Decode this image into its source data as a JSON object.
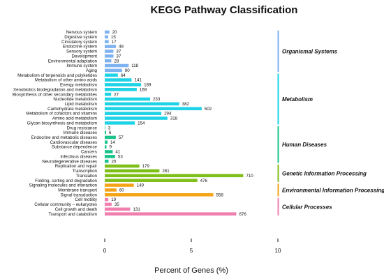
{
  "chart_data": {
    "type": "bar",
    "orientation": "horizontal",
    "title": "KEGG Pathway Classification",
    "xlabel": "Percent of Genes (%)",
    "xlim": [
      0,
      10
    ],
    "xticks": [
      "0",
      "5",
      "10"
    ],
    "groups": [
      {
        "name": "Organismal Systems",
        "color": "#7fb2f0",
        "items": [
          {
            "label": "Nervous system",
            "count": 20,
            "percent": 0.27
          },
          {
            "label": "Digestive system",
            "count": 15,
            "percent": 0.2
          },
          {
            "label": "Circulatory system",
            "count": 17,
            "percent": 0.23
          },
          {
            "label": "Endocrine system",
            "count": 48,
            "percent": 0.65
          },
          {
            "label": "Sensory system",
            "count": 37,
            "percent": 0.5
          },
          {
            "label": "Development",
            "count": 37,
            "percent": 0.5
          },
          {
            "label": "Environmental adaptation",
            "count": 28,
            "percent": 0.38
          },
          {
            "label": "Immune system",
            "count": 118,
            "percent": 1.38
          },
          {
            "label": "Aging",
            "count": 90,
            "percent": 1.0
          }
        ]
      },
      {
        "name": "Metabolism",
        "color": "#1ed3e6",
        "items": [
          {
            "label": "Metabolism of terpenoids and polyketides",
            "count": 64,
            "percent": 0.76
          },
          {
            "label": "Metabolism of other amino acids",
            "count": 141,
            "percent": 1.55
          },
          {
            "label": "Energy metabolism",
            "count": 189,
            "percent": 2.1
          },
          {
            "label": "Xenobiotics biodegradation and metabolism",
            "count": 169,
            "percent": 1.85
          },
          {
            "label": "Biosynthesis of other secondary metabolites",
            "count": 27,
            "percent": 0.37
          },
          {
            "label": "Nucleotide metabolism",
            "count": 233,
            "percent": 2.62
          },
          {
            "label": "Lipid metabolism",
            "count": 382,
            "percent": 4.3
          },
          {
            "label": "Carbohydrate metabolism",
            "count": 502,
            "percent": 5.6
          },
          {
            "label": "Metabolism of cofactors and vitamins",
            "count": 294,
            "percent": 3.27
          },
          {
            "label": "Amino acid metabolism",
            "count": 318,
            "percent": 3.62
          },
          {
            "label": "Glycan biosynthesis and metabolism",
            "count": 154,
            "percent": 1.74
          }
        ]
      },
      {
        "name": "Human Diseases",
        "color": "#19c389",
        "items": [
          {
            "label": "Drug resistance",
            "count": 3,
            "percent": 0.03
          },
          {
            "label": "Immune diseases",
            "count": 6,
            "percent": 0.08
          },
          {
            "label": "Endocrine and metabolic diseases",
            "count": 57,
            "percent": 0.64
          },
          {
            "label": "Cardiovascular diseases",
            "count": 14,
            "percent": 0.16
          },
          {
            "label": "Substance dependence",
            "count": 9,
            "percent": 0.1
          },
          {
            "label": "Cancers",
            "count": 41,
            "percent": 0.46
          },
          {
            "label": "Infectious diseases",
            "count": 53,
            "percent": 0.6
          },
          {
            "label": "Neurodegenerative diseases",
            "count": 20,
            "percent": 0.22
          }
        ]
      },
      {
        "name": "Genetic Information Processing",
        "color": "#7fbf1a",
        "items": [
          {
            "label": "Replication and repair",
            "count": 179,
            "percent": 2.0
          },
          {
            "label": "Transcription",
            "count": 281,
            "percent": 3.16
          },
          {
            "label": "Translation",
            "count": 710,
            "percent": 8.0
          },
          {
            "label": "Folding, sorting and degradation",
            "count": 476,
            "percent": 5.35
          }
        ]
      },
      {
        "name": "Environmental Information Processing",
        "color": "#f5a317",
        "items": [
          {
            "label": "Signaling molecules and interaction",
            "count": 149,
            "percent": 1.68
          },
          {
            "label": "Membrane transport",
            "count": 60,
            "percent": 0.68
          },
          {
            "label": "Signal transduction",
            "count": 558,
            "percent": 6.27
          }
        ]
      },
      {
        "name": "Cellular Processes",
        "color": "#f07fb0",
        "items": [
          {
            "label": "Cell motility",
            "count": 19,
            "percent": 0.21
          },
          {
            "label": "Cellular community – eukaryotes",
            "count": 35,
            "percent": 0.4
          },
          {
            "label": "Cell growth and death",
            "count": 131,
            "percent": 1.47
          },
          {
            "label": "Transport and catabolism",
            "count": 676,
            "percent": 7.6
          }
        ]
      }
    ]
  }
}
